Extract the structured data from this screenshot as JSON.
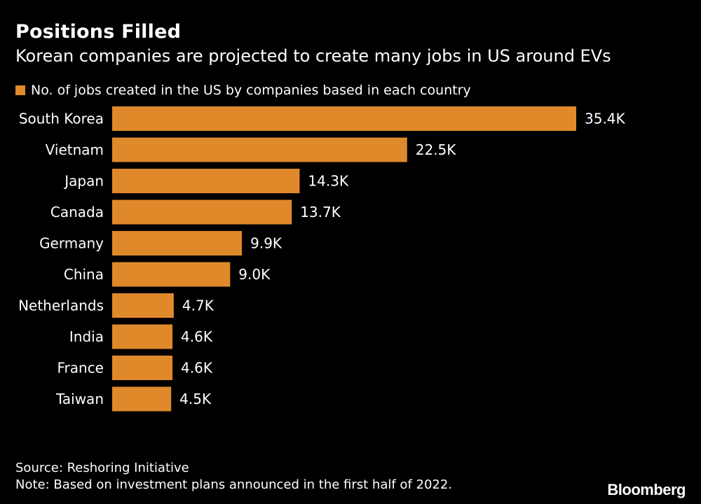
{
  "header": {
    "title": "Positions Filled",
    "subtitle": "Korean companies are projected to create many jobs in US around EVs"
  },
  "footer": {
    "source": "Source: Reshoring Initiative",
    "note": "Note: Based on investment plans announced in the first half of 2022.",
    "brand": "Bloomberg"
  },
  "colors": {
    "bar": "#e0892b",
    "background": "#000000",
    "text": "#ffffff"
  },
  "chart_data": {
    "type": "bar",
    "orientation": "horizontal",
    "categories": [
      "South Korea",
      "Vietnam",
      "Japan",
      "Canada",
      "Germany",
      "China",
      "Netherlands",
      "India",
      "France",
      "Taiwan"
    ],
    "series": [
      {
        "name": "No. of jobs created in the US by companies based in each country",
        "values": [
          35400,
          22500,
          14300,
          13700,
          9900,
          9000,
          4700,
          4600,
          4600,
          4500
        ],
        "labels": [
          "35.4K",
          "22.5K",
          "14.3K",
          "13.7K",
          "9.9K",
          "9.0K",
          "4.7K",
          "4.6K",
          "4.6K",
          "4.5K"
        ]
      }
    ],
    "legend": "top-left",
    "grid": false
  }
}
